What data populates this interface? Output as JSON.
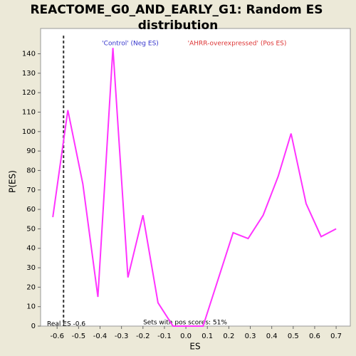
{
  "chart_data": {
    "type": "line",
    "title": [
      "REACTOME_G0_AND_EARLY_G1: Random ES",
      "distribution"
    ],
    "x_label": "ES",
    "y_label": "P(ES)",
    "annotations": {
      "neg": "'Control' (Neg ES)",
      "pos": "'AHRR-overexpressed' (Pos ES)",
      "real_es": "Real ES -0.6",
      "pos_scores": "Sets with pos scores: 51%"
    },
    "real_es_line": -0.57,
    "series": [
      {
        "color": "#ff33ff",
        "x": [
          -0.62,
          -0.55,
          -0.48,
          -0.41,
          -0.34,
          -0.27,
          -0.2,
          -0.13,
          -0.06,
          0.01,
          0.08,
          0.15,
          0.22,
          0.29,
          0.36,
          0.43,
          0.49,
          0.56,
          0.63,
          0.7
        ],
        "values": [
          56,
          111,
          73,
          15,
          143,
          25,
          57,
          12,
          0,
          0,
          0,
          24,
          48,
          45,
          57,
          77,
          99,
          63,
          46,
          50
        ]
      }
    ],
    "xlim": [
      -0.677,
      0.766
    ],
    "ylim": [
      0,
      153
    ],
    "xticks": [
      -0.6,
      -0.5,
      -0.4,
      -0.3,
      -0.2,
      -0.1,
      {
        "value": 0,
        "label": "0.0"
      },
      0.1,
      0.2,
      0.3,
      0.4,
      0.5,
      0.6,
      0.7
    ],
    "yticks": [
      0,
      10,
      20,
      30,
      40,
      50,
      60,
      70,
      80,
      90,
      100,
      110,
      120,
      130,
      140
    ]
  }
}
